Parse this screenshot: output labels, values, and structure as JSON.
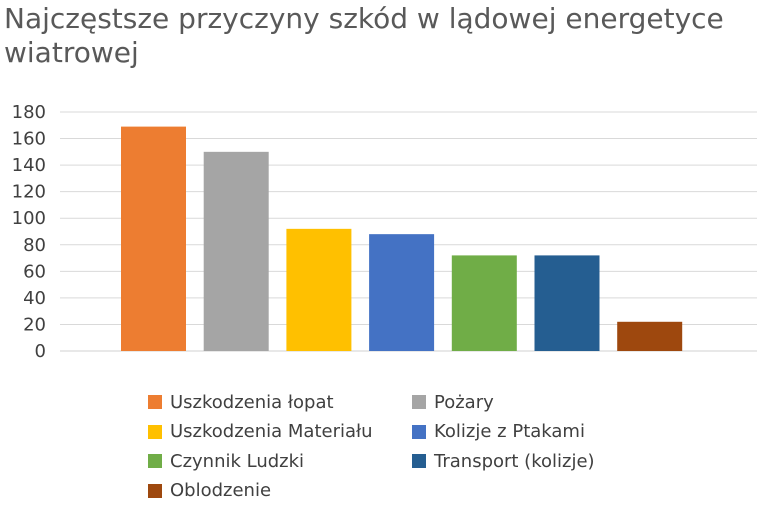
{
  "chart_data": {
    "type": "bar",
    "title": "Najczęstsze przyczyny szkód w lądowej energetyce wiatrowej",
    "categories": [
      "Uszkodzenia łopat",
      "Pożary",
      "Uszkodzenia Materiału",
      "Kolizje z Ptakami",
      "Czynnik Ludzki",
      "Transport (kolizje)",
      "Oblodzenie"
    ],
    "values": [
      169,
      150,
      92,
      88,
      72,
      72,
      22
    ],
    "colors": [
      "#ED7D31",
      "#A5A5A5",
      "#FFC000",
      "#4472C4",
      "#70AD47",
      "#255E91",
      "#9E480E"
    ],
    "ylim": [
      0,
      180
    ],
    "yticks": [
      0,
      20,
      40,
      60,
      80,
      100,
      120,
      140,
      160,
      180
    ],
    "grid": true,
    "legend_position": "bottom"
  }
}
